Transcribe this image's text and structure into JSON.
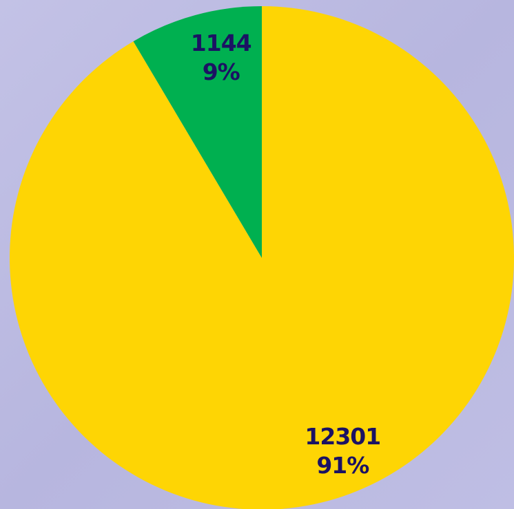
{
  "chart_data": {
    "type": "pie",
    "values": [
      12301,
      1144
    ],
    "percentages": [
      91,
      9
    ],
    "percentage_labels": [
      "91%",
      "9%"
    ],
    "colors": [
      "#fed504",
      "#00b050"
    ],
    "start_angle": 0,
    "direction": "clockwise"
  }
}
